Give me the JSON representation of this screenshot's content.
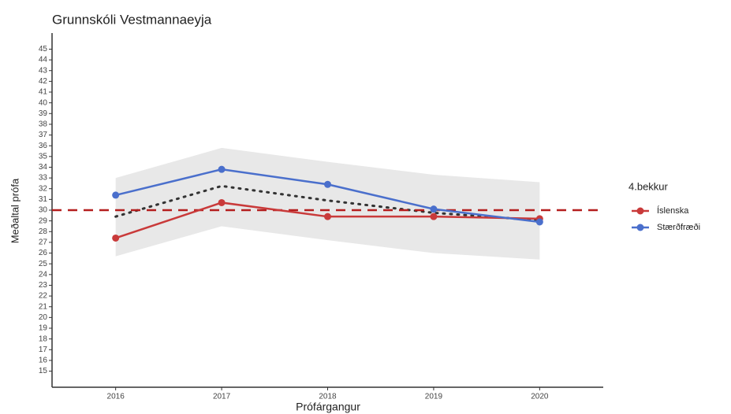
{
  "chart_data": {
    "type": "line",
    "title": "Grunnskóli Vestmannaeyja",
    "x_label": "Prófárgangur",
    "y_label": "Meðaltal prófa",
    "legend_title": "4.bekkur",
    "legend_position": "right",
    "x": [
      2016,
      2017,
      2018,
      2019,
      2020
    ],
    "xlim": [
      2015.4,
      2020.6
    ],
    "xticks": [
      2016,
      2017,
      2018,
      2019,
      2020
    ],
    "ylim": [
      13.5,
      46.5
    ],
    "yticks": [
      15,
      16,
      17,
      18,
      19,
      20,
      21,
      22,
      23,
      24,
      25,
      26,
      27,
      28,
      29,
      30,
      31,
      32,
      33,
      34,
      35,
      36,
      37,
      38,
      39,
      40,
      41,
      42,
      43,
      44,
      45
    ],
    "series": [
      {
        "name": "Íslenska",
        "color": "#c93a3a",
        "values": [
          27.4,
          30.7,
          29.4,
          29.4,
          29.2
        ]
      },
      {
        "name": "Stærðfræði",
        "color": "#4a6fcc",
        "values": [
          31.4,
          33.8,
          32.4,
          30.1,
          28.9
        ]
      }
    ],
    "trend": {
      "color": "#333333",
      "style": "dotted",
      "values": [
        29.4,
        32.25,
        30.9,
        29.75,
        29.05
      ]
    },
    "band": {
      "color": "#e8e8e8",
      "lower": [
        25.7,
        28.5,
        27.2,
        26.0,
        25.4
      ],
      "upper": [
        33.0,
        35.8,
        34.5,
        33.3,
        32.6
      ]
    },
    "reference_line": {
      "value": 30,
      "color": "#b41e1e",
      "style": "dashed"
    }
  }
}
